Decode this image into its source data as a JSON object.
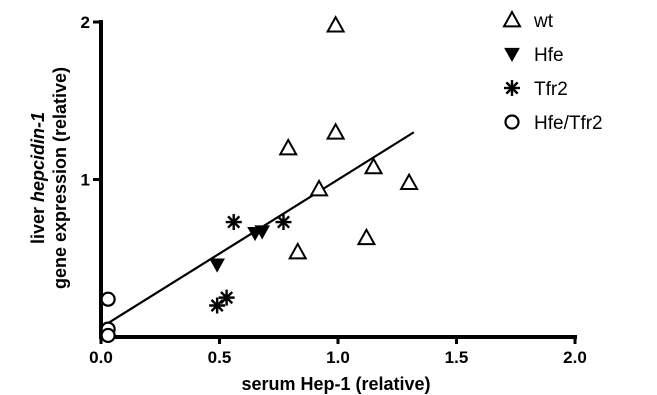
{
  "chart_data": {
    "type": "scatter",
    "title": "",
    "xlabel": "serum Hep-1 (relative)",
    "ylabel_line1_prefix": "liver ",
    "ylabel_line1_italic": "hepcidin-1",
    "ylabel_line2": "gene expression (relative)",
    "xlim": [
      0,
      2
    ],
    "ylim": [
      0,
      2
    ],
    "x_ticks": [
      {
        "value": 0.0,
        "label": "0.0"
      },
      {
        "value": 0.5,
        "label": "0.5"
      },
      {
        "value": 1.0,
        "label": "1.0"
      },
      {
        "value": 1.5,
        "label": "1.5"
      },
      {
        "value": 2.0,
        "label": "2.0"
      }
    ],
    "y_ticks": [
      {
        "value": 1,
        "label": "1"
      },
      {
        "value": 2,
        "label": "2"
      }
    ],
    "legend_position": "top-right",
    "series": [
      {
        "name": "wt",
        "marker": "triangle-up-open",
        "points": [
          {
            "x": 0.99,
            "y": 1.98
          },
          {
            "x": 0.99,
            "y": 1.3
          },
          {
            "x": 0.79,
            "y": 1.2
          },
          {
            "x": 1.15,
            "y": 1.08
          },
          {
            "x": 1.3,
            "y": 0.98
          },
          {
            "x": 0.92,
            "y": 0.94
          },
          {
            "x": 0.83,
            "y": 0.54
          },
          {
            "x": 1.12,
            "y": 0.63
          }
        ]
      },
      {
        "name": "Hfe",
        "marker": "triangle-down-filled",
        "points": [
          {
            "x": 0.49,
            "y": 0.46
          },
          {
            "x": 0.65,
            "y": 0.66
          },
          {
            "x": 0.68,
            "y": 0.67
          }
        ]
      },
      {
        "name": "Tfr2",
        "marker": "asterisk",
        "points": [
          {
            "x": 0.56,
            "y": 0.73
          },
          {
            "x": 0.77,
            "y": 0.73
          },
          {
            "x": 0.49,
            "y": 0.2
          },
          {
            "x": 0.53,
            "y": 0.25
          }
        ]
      },
      {
        "name": "Hfe/Tfr2",
        "marker": "circle-open",
        "points": [
          {
            "x": 0.03,
            "y": 0.24
          },
          {
            "x": 0.03,
            "y": 0.05
          },
          {
            "x": 0.03,
            "y": 0.01
          }
        ]
      }
    ],
    "regression_line": {
      "x": [
        0.0,
        1.32
      ],
      "y": [
        0.06,
        1.3
      ]
    },
    "colors": {
      "ink": "#000000",
      "background": "#ffffff"
    },
    "grid": false
  }
}
